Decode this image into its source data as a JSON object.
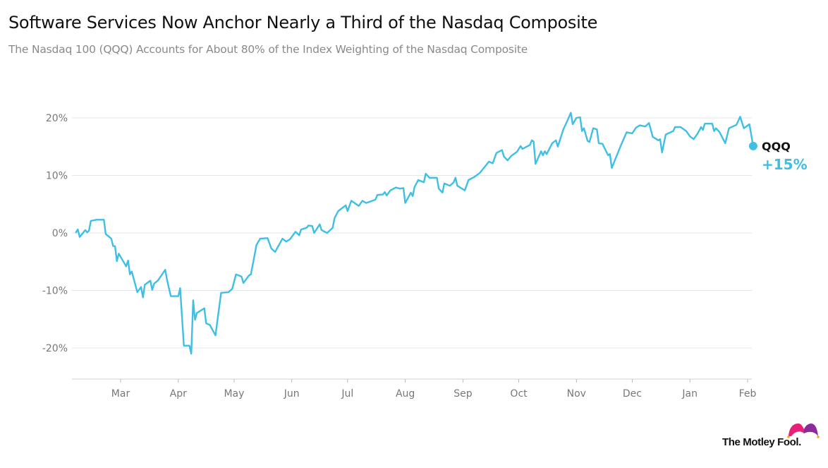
{
  "chart_data": {
    "type": "line",
    "title": "Software Services Now Anchor Nearly a Third of the Nasdaq Composite",
    "subtitle": "The Nasdaq 100 (QQQ) Accounts for About 80% of the Index Weighting of the Nasdaq Composite",
    "xlabel": "",
    "ylabel": "",
    "ylim": [
      -25,
      25
    ],
    "xlim": [
      "2024-02-06",
      "2025-02-04"
    ],
    "grid": true,
    "line_color": "#3fbfe3",
    "y_ticks": [
      {
        "value": 20,
        "label": "20%"
      },
      {
        "value": 10,
        "label": "10%"
      },
      {
        "value": 0,
        "label": "0%"
      },
      {
        "value": -10,
        "label": "-10%"
      },
      {
        "value": -20,
        "label": "-20%"
      }
    ],
    "x_ticks": [
      {
        "date": "2024-03-01",
        "label": "Mar"
      },
      {
        "date": "2024-04-01",
        "label": "Apr"
      },
      {
        "date": "2024-05-01",
        "label": "May"
      },
      {
        "date": "2024-06-01",
        "label": "Jun"
      },
      {
        "date": "2024-07-01",
        "label": "Jul"
      },
      {
        "date": "2024-08-01",
        "label": "Aug"
      },
      {
        "date": "2024-09-01",
        "label": "Sep"
      },
      {
        "date": "2024-10-01",
        "label": "Oct"
      },
      {
        "date": "2024-11-01",
        "label": "Nov"
      },
      {
        "date": "2024-12-01",
        "label": "Dec"
      },
      {
        "date": "2025-01-01",
        "label": "Jan"
      },
      {
        "date": "2025-02-01",
        "label": "Feb"
      }
    ],
    "series": [
      {
        "name": "QQQ",
        "end_label": "+15%",
        "points": [
          [
            "2024-02-06",
            0.1
          ],
          [
            "2024-02-07",
            0.6
          ],
          [
            "2024-02-08",
            -0.7
          ],
          [
            "2024-02-11",
            0.5
          ],
          [
            "2024-02-12",
            0.1
          ],
          [
            "2024-02-13",
            0.4
          ],
          [
            "2024-02-14",
            2.1
          ],
          [
            "2024-02-17",
            2.3
          ],
          [
            "2024-02-21",
            2.3
          ],
          [
            "2024-02-22",
            -0.2
          ],
          [
            "2024-02-25",
            -1.0
          ],
          [
            "2024-02-26",
            -2.3
          ],
          [
            "2024-02-27",
            -2.3
          ],
          [
            "2024-02-28",
            -4.9
          ],
          [
            "2024-02-29",
            -3.6
          ],
          [
            "2024-03-04",
            -5.8
          ],
          [
            "2024-03-05",
            -4.8
          ],
          [
            "2024-03-06",
            -7.2
          ],
          [
            "2024-03-07",
            -6.7
          ],
          [
            "2024-03-10",
            -10.3
          ],
          [
            "2024-03-12",
            -9.4
          ],
          [
            "2024-03-13",
            -11.2
          ],
          [
            "2024-03-14",
            -9.0
          ],
          [
            "2024-03-17",
            -8.3
          ],
          [
            "2024-03-18",
            -9.9
          ],
          [
            "2024-03-19",
            -8.8
          ],
          [
            "2024-03-21",
            -8.3
          ],
          [
            "2024-03-25",
            -6.4
          ],
          [
            "2024-03-26",
            -8.2
          ],
          [
            "2024-03-28",
            -11.0
          ],
          [
            "2024-04-01",
            -11.0
          ],
          [
            "2024-04-02",
            -9.6
          ],
          [
            "2024-04-04",
            -19.6
          ],
          [
            "2024-04-07",
            -19.6
          ],
          [
            "2024-04-08",
            -21.0
          ],
          [
            "2024-04-09",
            -11.7
          ],
          [
            "2024-04-10",
            -15.1
          ],
          [
            "2024-04-11",
            -13.9
          ],
          [
            "2024-04-15",
            -13.1
          ],
          [
            "2024-04-16",
            -15.7
          ],
          [
            "2024-04-18",
            -16.0
          ],
          [
            "2024-04-21",
            -17.8
          ],
          [
            "2024-04-24",
            -10.4
          ],
          [
            "2024-04-28",
            -10.3
          ],
          [
            "2024-04-30",
            -9.7
          ],
          [
            "2024-05-02",
            -7.2
          ],
          [
            "2024-05-05",
            -7.6
          ],
          [
            "2024-05-06",
            -8.7
          ],
          [
            "2024-05-09",
            -7.4
          ],
          [
            "2024-05-10",
            -7.2
          ],
          [
            "2024-05-12",
            -3.9
          ],
          [
            "2024-05-13",
            -2.1
          ],
          [
            "2024-05-15",
            -1.0
          ],
          [
            "2024-05-19",
            -0.9
          ],
          [
            "2024-05-21",
            -2.7
          ],
          [
            "2024-05-23",
            -3.3
          ],
          [
            "2024-05-27",
            -1.0
          ],
          [
            "2024-05-29",
            -1.5
          ],
          [
            "2024-05-31",
            -1.1
          ],
          [
            "2024-06-03",
            0.2
          ],
          [
            "2024-06-05",
            -0.4
          ],
          [
            "2024-06-06",
            0.6
          ],
          [
            "2024-06-09",
            0.9
          ],
          [
            "2024-06-10",
            1.3
          ],
          [
            "2024-06-12",
            1.2
          ],
          [
            "2024-06-13",
            0.0
          ],
          [
            "2024-06-16",
            1.5
          ],
          [
            "2024-06-17",
            0.5
          ],
          [
            "2024-06-20",
            0.0
          ],
          [
            "2024-06-23",
            0.9
          ],
          [
            "2024-06-24",
            2.6
          ],
          [
            "2024-06-26",
            3.8
          ],
          [
            "2024-06-30",
            4.8
          ],
          [
            "2024-07-01",
            3.8
          ],
          [
            "2024-07-03",
            5.6
          ],
          [
            "2024-07-07",
            4.7
          ],
          [
            "2024-07-09",
            5.6
          ],
          [
            "2024-07-11",
            5.2
          ],
          [
            "2024-07-16",
            5.8
          ],
          [
            "2024-07-17",
            6.6
          ],
          [
            "2024-07-20",
            6.7
          ],
          [
            "2024-07-21",
            7.1
          ],
          [
            "2024-07-22",
            6.5
          ],
          [
            "2024-07-24",
            7.4
          ],
          [
            "2024-07-27",
            7.9
          ],
          [
            "2024-07-29",
            7.7
          ],
          [
            "2024-07-31",
            7.8
          ],
          [
            "2024-08-01",
            5.2
          ],
          [
            "2024-08-04",
            7.0
          ],
          [
            "2024-08-05",
            6.4
          ],
          [
            "2024-08-06",
            8.0
          ],
          [
            "2024-08-08",
            9.2
          ],
          [
            "2024-08-11",
            8.8
          ],
          [
            "2024-08-12",
            10.3
          ],
          [
            "2024-08-14",
            9.6
          ],
          [
            "2024-08-18",
            9.6
          ],
          [
            "2024-08-19",
            7.7
          ],
          [
            "2024-08-21",
            7.0
          ],
          [
            "2024-08-22",
            8.6
          ],
          [
            "2024-08-25",
            8.2
          ],
          [
            "2024-08-27",
            8.8
          ],
          [
            "2024-08-28",
            9.6
          ],
          [
            "2024-08-29",
            8.2
          ],
          [
            "2024-09-02",
            7.4
          ],
          [
            "2024-09-04",
            9.2
          ],
          [
            "2024-09-07",
            9.7
          ],
          [
            "2024-09-10",
            10.4
          ],
          [
            "2024-09-15",
            12.4
          ],
          [
            "2024-09-17",
            12.1
          ],
          [
            "2024-09-19",
            13.9
          ],
          [
            "2024-09-22",
            14.4
          ],
          [
            "2024-09-23",
            13.3
          ],
          [
            "2024-09-25",
            12.6
          ],
          [
            "2024-09-27",
            13.4
          ],
          [
            "2024-09-30",
            14.1
          ],
          [
            "2024-10-02",
            15.1
          ],
          [
            "2024-10-03",
            14.6
          ],
          [
            "2024-10-07",
            15.3
          ],
          [
            "2024-10-08",
            16.1
          ],
          [
            "2024-10-09",
            15.9
          ],
          [
            "2024-10-10",
            12.0
          ],
          [
            "2024-10-13",
            14.2
          ],
          [
            "2024-10-14",
            13.5
          ],
          [
            "2024-10-15",
            14.2
          ],
          [
            "2024-10-16",
            13.7
          ],
          [
            "2024-10-19",
            15.6
          ],
          [
            "2024-10-21",
            16.1
          ],
          [
            "2024-10-22",
            15.0
          ],
          [
            "2024-10-25",
            18.0
          ],
          [
            "2024-10-27",
            19.4
          ],
          [
            "2024-10-29",
            20.9
          ],
          [
            "2024-10-30",
            18.9
          ],
          [
            "2024-11-01",
            20.0
          ],
          [
            "2024-11-03",
            20.1
          ],
          [
            "2024-11-04",
            17.7
          ],
          [
            "2024-11-05",
            18.2
          ],
          [
            "2024-11-07",
            16.0
          ],
          [
            "2024-11-08",
            15.8
          ],
          [
            "2024-11-10",
            18.2
          ],
          [
            "2024-11-12",
            18.0
          ],
          [
            "2024-11-13",
            15.6
          ],
          [
            "2024-11-15",
            15.5
          ],
          [
            "2024-11-18",
            13.5
          ],
          [
            "2024-11-19",
            13.7
          ],
          [
            "2024-11-20",
            11.3
          ],
          [
            "2024-11-25",
            15.3
          ],
          [
            "2024-11-28",
            17.5
          ],
          [
            "2024-12-01",
            17.3
          ],
          [
            "2024-12-03",
            18.3
          ],
          [
            "2024-12-05",
            18.7
          ],
          [
            "2024-12-08",
            18.5
          ],
          [
            "2024-12-10",
            19.1
          ],
          [
            "2024-12-12",
            16.7
          ],
          [
            "2024-12-15",
            16.1
          ],
          [
            "2024-12-16",
            16.3
          ],
          [
            "2024-12-17",
            14.0
          ],
          [
            "2024-12-19",
            17.1
          ],
          [
            "2024-12-23",
            17.7
          ],
          [
            "2024-12-24",
            18.4
          ],
          [
            "2024-12-27",
            18.4
          ],
          [
            "2024-12-30",
            17.7
          ],
          [
            "2025-01-01",
            16.8
          ],
          [
            "2025-01-03",
            16.3
          ],
          [
            "2025-01-05",
            17.2
          ],
          [
            "2025-01-07",
            18.4
          ],
          [
            "2025-01-08",
            17.9
          ],
          [
            "2025-01-09",
            19.0
          ],
          [
            "2025-01-13",
            19.0
          ],
          [
            "2025-01-14",
            17.7
          ],
          [
            "2025-01-15",
            18.2
          ],
          [
            "2025-01-17",
            17.5
          ],
          [
            "2025-01-20",
            15.6
          ],
          [
            "2025-01-22",
            18.2
          ],
          [
            "2025-01-26",
            18.8
          ],
          [
            "2025-01-28",
            20.2
          ],
          [
            "2025-01-30",
            18.2
          ],
          [
            "2025-02-02",
            18.9
          ],
          [
            "2025-02-04",
            15.1
          ]
        ]
      }
    ]
  },
  "brand": {
    "logo_text": "The Motley Fool.",
    "hat_colors": [
      "#e8207a",
      "#8d2a9b"
    ]
  }
}
